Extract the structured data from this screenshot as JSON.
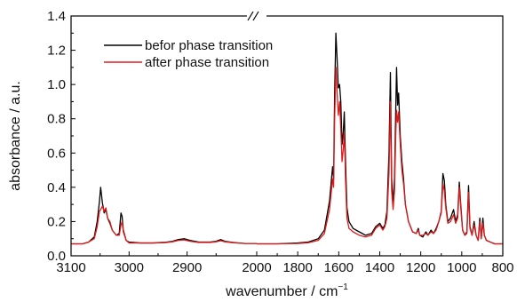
{
  "chart_data": {
    "type": "line",
    "xlabel": "wavenumber / cm",
    "xlabel_superscript": "−1",
    "ylabel": "absorbance / a.u.",
    "ylim": [
      0,
      1.4
    ],
    "y_ticks": [
      "0.0",
      "0.2",
      "0.4",
      "0.6",
      "0.8",
      "1.0",
      "1.2",
      "1.4"
    ],
    "x_axis_break": {
      "left_segment": {
        "xlim": [
          3100,
          2780
        ],
        "ticks": [
          "3100",
          "3000",
          "2900"
        ]
      },
      "right_segment": {
        "xlim": [
          2000,
          800
        ],
        "ticks": [
          "2000",
          "1800",
          "1600",
          "1400",
          "1200",
          "1000",
          "800"
        ]
      }
    },
    "legend": {
      "position": "top-left"
    },
    "series": [
      {
        "name": "befor phase transition",
        "color": "#000000",
        "left_points": [
          [
            3100,
            0.07
          ],
          [
            3080,
            0.07
          ],
          [
            3070,
            0.08
          ],
          [
            3060,
            0.11
          ],
          [
            3055,
            0.2
          ],
          [
            3051,
            0.32
          ],
          [
            3049,
            0.4
          ],
          [
            3046,
            0.31
          ],
          [
            3043,
            0.25
          ],
          [
            3040,
            0.27
          ],
          [
            3037,
            0.22
          ],
          [
            3033,
            0.19
          ],
          [
            3029,
            0.15
          ],
          [
            3022,
            0.12
          ],
          [
            3017,
            0.13
          ],
          [
            3014,
            0.25
          ],
          [
            3012,
            0.23
          ],
          [
            3010,
            0.15
          ],
          [
            3005,
            0.09
          ],
          [
            3000,
            0.08
          ],
          [
            2980,
            0.075
          ],
          [
            2960,
            0.075
          ],
          [
            2940,
            0.078
          ],
          [
            2925,
            0.085
          ],
          [
            2915,
            0.095
          ],
          [
            2905,
            0.1
          ],
          [
            2895,
            0.09
          ],
          [
            2880,
            0.08
          ],
          [
            2860,
            0.08
          ],
          [
            2850,
            0.085
          ],
          [
            2842,
            0.095
          ],
          [
            2835,
            0.085
          ],
          [
            2820,
            0.078
          ],
          [
            2800,
            0.072
          ],
          [
            2780,
            0.072
          ]
        ],
        "right_points": [
          [
            2000,
            0.07
          ],
          [
            1900,
            0.07
          ],
          [
            1800,
            0.075
          ],
          [
            1750,
            0.08
          ],
          [
            1700,
            0.1
          ],
          [
            1670,
            0.15
          ],
          [
            1645,
            0.32
          ],
          [
            1630,
            0.52
          ],
          [
            1625,
            0.45
          ],
          [
            1620,
            0.95
          ],
          [
            1614,
            1.3
          ],
          [
            1608,
            1.15
          ],
          [
            1602,
            0.98
          ],
          [
            1596,
            1.0
          ],
          [
            1590,
            0.9
          ],
          [
            1584,
            0.65
          ],
          [
            1578,
            0.72
          ],
          [
            1573,
            0.84
          ],
          [
            1567,
            0.55
          ],
          [
            1560,
            0.28
          ],
          [
            1550,
            0.2
          ],
          [
            1530,
            0.16
          ],
          [
            1500,
            0.14
          ],
          [
            1470,
            0.12
          ],
          [
            1440,
            0.13
          ],
          [
            1420,
            0.17
          ],
          [
            1400,
            0.19
          ],
          [
            1385,
            0.16
          ],
          [
            1375,
            0.18
          ],
          [
            1365,
            0.26
          ],
          [
            1355,
            0.6
          ],
          [
            1348,
            1.07
          ],
          [
            1342,
            0.45
          ],
          [
            1335,
            0.3
          ],
          [
            1328,
            0.45
          ],
          [
            1322,
            0.85
          ],
          [
            1318,
            1.1
          ],
          [
            1313,
            0.88
          ],
          [
            1308,
            0.95
          ],
          [
            1300,
            0.7
          ],
          [
            1292,
            0.55
          ],
          [
            1284,
            0.45
          ],
          [
            1275,
            0.3
          ],
          [
            1260,
            0.2
          ],
          [
            1240,
            0.14
          ],
          [
            1222,
            0.13
          ],
          [
            1212,
            0.16
          ],
          [
            1205,
            0.12
          ],
          [
            1190,
            0.11
          ],
          [
            1175,
            0.14
          ],
          [
            1165,
            0.12
          ],
          [
            1150,
            0.15
          ],
          [
            1138,
            0.13
          ],
          [
            1125,
            0.16
          ],
          [
            1112,
            0.2
          ],
          [
            1100,
            0.26
          ],
          [
            1092,
            0.48
          ],
          [
            1085,
            0.44
          ],
          [
            1078,
            0.3
          ],
          [
            1068,
            0.2
          ],
          [
            1055,
            0.22
          ],
          [
            1040,
            0.27
          ],
          [
            1030,
            0.2
          ],
          [
            1020,
            0.24
          ],
          [
            1012,
            0.43
          ],
          [
            1005,
            0.3
          ],
          [
            996,
            0.15
          ],
          [
            985,
            0.12
          ],
          [
            975,
            0.14
          ],
          [
            967,
            0.41
          ],
          [
            960,
            0.17
          ],
          [
            950,
            0.12
          ],
          [
            940,
            0.2
          ],
          [
            930,
            0.12
          ],
          [
            920,
            0.09
          ],
          [
            912,
            0.22
          ],
          [
            905,
            0.1
          ],
          [
            897,
            0.22
          ],
          [
            890,
            0.12
          ],
          [
            880,
            0.09
          ],
          [
            860,
            0.08
          ],
          [
            840,
            0.07
          ],
          [
            820,
            0.07
          ],
          [
            800,
            0.07
          ]
        ]
      },
      {
        "name": "after phase transition",
        "color": "#e31a1c",
        "left_points": [
          [
            3100,
            0.07
          ],
          [
            3080,
            0.07
          ],
          [
            3070,
            0.08
          ],
          [
            3060,
            0.1
          ],
          [
            3055,
            0.17
          ],
          [
            3051,
            0.26
          ],
          [
            3049,
            0.27
          ],
          [
            3046,
            0.29
          ],
          [
            3043,
            0.26
          ],
          [
            3040,
            0.28
          ],
          [
            3037,
            0.22
          ],
          [
            3033,
            0.2
          ],
          [
            3029,
            0.15
          ],
          [
            3022,
            0.12
          ],
          [
            3017,
            0.12
          ],
          [
            3014,
            0.18
          ],
          [
            3012,
            0.2
          ],
          [
            3010,
            0.14
          ],
          [
            3005,
            0.09
          ],
          [
            3000,
            0.075
          ],
          [
            2980,
            0.075
          ],
          [
            2960,
            0.075
          ],
          [
            2940,
            0.076
          ],
          [
            2925,
            0.082
          ],
          [
            2915,
            0.09
          ],
          [
            2905,
            0.093
          ],
          [
            2895,
            0.085
          ],
          [
            2880,
            0.078
          ],
          [
            2860,
            0.078
          ],
          [
            2850,
            0.082
          ],
          [
            2842,
            0.088
          ],
          [
            2835,
            0.082
          ],
          [
            2820,
            0.076
          ],
          [
            2800,
            0.072
          ],
          [
            2780,
            0.072
          ]
        ],
        "right_points": [
          [
            2000,
            0.07
          ],
          [
            1900,
            0.07
          ],
          [
            1800,
            0.072
          ],
          [
            1750,
            0.076
          ],
          [
            1700,
            0.09
          ],
          [
            1670,
            0.13
          ],
          [
            1645,
            0.27
          ],
          [
            1630,
            0.45
          ],
          [
            1625,
            0.4
          ],
          [
            1620,
            0.8
          ],
          [
            1614,
            1.1
          ],
          [
            1608,
            0.95
          ],
          [
            1602,
            0.82
          ],
          [
            1596,
            0.9
          ],
          [
            1590,
            0.75
          ],
          [
            1584,
            0.55
          ],
          [
            1578,
            0.62
          ],
          [
            1573,
            0.72
          ],
          [
            1567,
            0.45
          ],
          [
            1560,
            0.22
          ],
          [
            1550,
            0.16
          ],
          [
            1530,
            0.14
          ],
          [
            1500,
            0.12
          ],
          [
            1470,
            0.11
          ],
          [
            1440,
            0.12
          ],
          [
            1420,
            0.16
          ],
          [
            1400,
            0.18
          ],
          [
            1385,
            0.15
          ],
          [
            1375,
            0.17
          ],
          [
            1365,
            0.22
          ],
          [
            1355,
            0.48
          ],
          [
            1348,
            0.9
          ],
          [
            1342,
            0.38
          ],
          [
            1335,
            0.27
          ],
          [
            1328,
            0.38
          ],
          [
            1322,
            0.7
          ],
          [
            1318,
            0.85
          ],
          [
            1313,
            0.78
          ],
          [
            1308,
            0.84
          ],
          [
            1300,
            0.65
          ],
          [
            1292,
            0.5
          ],
          [
            1284,
            0.42
          ],
          [
            1275,
            0.3
          ],
          [
            1260,
            0.2
          ],
          [
            1240,
            0.14
          ],
          [
            1222,
            0.13
          ],
          [
            1212,
            0.15
          ],
          [
            1205,
            0.12
          ],
          [
            1190,
            0.12
          ],
          [
            1175,
            0.13
          ],
          [
            1165,
            0.12
          ],
          [
            1150,
            0.14
          ],
          [
            1138,
            0.13
          ],
          [
            1125,
            0.15
          ],
          [
            1112,
            0.2
          ],
          [
            1100,
            0.25
          ],
          [
            1092,
            0.42
          ],
          [
            1085,
            0.38
          ],
          [
            1078,
            0.28
          ],
          [
            1068,
            0.19
          ],
          [
            1055,
            0.2
          ],
          [
            1040,
            0.24
          ],
          [
            1030,
            0.19
          ],
          [
            1020,
            0.22
          ],
          [
            1012,
            0.4
          ],
          [
            1005,
            0.28
          ],
          [
            996,
            0.15
          ],
          [
            985,
            0.12
          ],
          [
            975,
            0.13
          ],
          [
            967,
            0.37
          ],
          [
            960,
            0.16
          ],
          [
            950,
            0.12
          ],
          [
            940,
            0.18
          ],
          [
            930,
            0.12
          ],
          [
            920,
            0.09
          ],
          [
            912,
            0.2
          ],
          [
            905,
            0.1
          ],
          [
            897,
            0.19
          ],
          [
            890,
            0.12
          ],
          [
            880,
            0.09
          ],
          [
            860,
            0.08
          ],
          [
            840,
            0.07
          ],
          [
            820,
            0.07
          ],
          [
            800,
            0.07
          ]
        ]
      }
    ]
  }
}
